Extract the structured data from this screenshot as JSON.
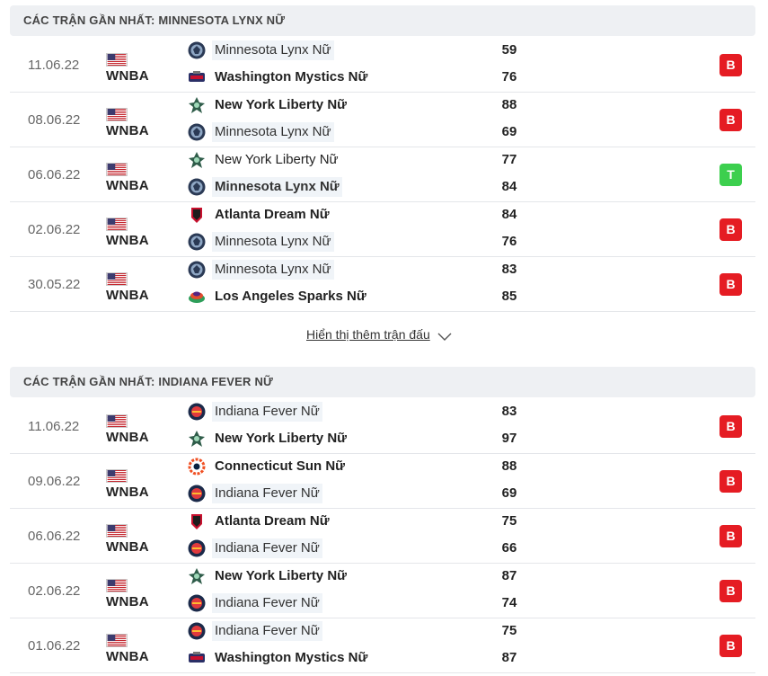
{
  "sections": [
    {
      "title": "CÁC TRẬN GẦN NHẤT: MINNESOTA LYNX NỮ",
      "matches": [
        {
          "date": "11.06.22",
          "league": "WNBA",
          "home": {
            "name": "Minnesota Lynx Nữ",
            "score": "59",
            "logo": "lynx-logo"
          },
          "away": {
            "name": "Washington Mystics Nữ",
            "score": "76",
            "logo": "mystics-logo"
          },
          "result": "B"
        },
        {
          "date": "08.06.22",
          "league": "WNBA",
          "home": {
            "name": "New York Liberty Nữ",
            "score": "88",
            "logo": "liberty-logo"
          },
          "away": {
            "name": "Minnesota Lynx Nữ",
            "score": "69",
            "logo": "lynx-logo"
          },
          "result": "B"
        },
        {
          "date": "06.06.22",
          "league": "WNBA",
          "home": {
            "name": "New York Liberty Nữ",
            "score": "77",
            "logo": "liberty-logo"
          },
          "away": {
            "name": "Minnesota Lynx Nữ",
            "score": "84",
            "logo": "lynx-logo"
          },
          "result": "T"
        },
        {
          "date": "02.06.22",
          "league": "WNBA",
          "home": {
            "name": "Atlanta Dream Nữ",
            "score": "84",
            "logo": "dream-logo"
          },
          "away": {
            "name": "Minnesota Lynx Nữ",
            "score": "76",
            "logo": "lynx-logo"
          },
          "result": "B"
        },
        {
          "date": "30.05.22",
          "league": "WNBA",
          "home": {
            "name": "Minnesota Lynx Nữ",
            "score": "83",
            "logo": "lynx-logo"
          },
          "away": {
            "name": "Los Angeles Sparks Nữ",
            "score": "85",
            "logo": "sparks-logo"
          },
          "result": "B"
        }
      ],
      "show_more": "Hiển thị thêm trận đấu"
    },
    {
      "title": "CÁC TRẬN GẦN NHẤT: INDIANA FEVER NỮ",
      "matches": [
        {
          "date": "11.06.22",
          "league": "WNBA",
          "home": {
            "name": "Indiana Fever Nữ",
            "score": "83",
            "logo": "fever-logo"
          },
          "away": {
            "name": "New York Liberty Nữ",
            "score": "97",
            "logo": "liberty-logo"
          },
          "result": "B"
        },
        {
          "date": "09.06.22",
          "league": "WNBA",
          "home": {
            "name": "Connecticut Sun Nữ",
            "score": "88",
            "logo": "sun-logo"
          },
          "away": {
            "name": "Indiana Fever Nữ",
            "score": "69",
            "logo": "fever-logo"
          },
          "result": "B"
        },
        {
          "date": "06.06.22",
          "league": "WNBA",
          "home": {
            "name": "Atlanta Dream Nữ",
            "score": "75",
            "logo": "dream-logo"
          },
          "away": {
            "name": "Indiana Fever Nữ",
            "score": "66",
            "logo": "fever-logo"
          },
          "result": "B"
        },
        {
          "date": "02.06.22",
          "league": "WNBA",
          "home": {
            "name": "New York Liberty Nữ",
            "score": "87",
            "logo": "liberty-logo"
          },
          "away": {
            "name": "Indiana Fever Nữ",
            "score": "74",
            "logo": "fever-logo"
          },
          "result": "B"
        },
        {
          "date": "01.06.22",
          "league": "WNBA",
          "home": {
            "name": "Indiana Fever Nữ",
            "score": "75",
            "logo": "fever-logo"
          },
          "away": {
            "name": "Washington Mystics Nữ",
            "score": "87",
            "logo": "mystics-logo"
          },
          "result": "B"
        }
      ]
    }
  ],
  "colors": {
    "loss": "#e51c23",
    "win": "#3ccf4e",
    "header_bg": "#eef0f3",
    "focus_bg": "#f0f4f8"
  },
  "icons": {
    "flag": "usa-flag-icon",
    "show_more": "chevron-down-icon"
  }
}
